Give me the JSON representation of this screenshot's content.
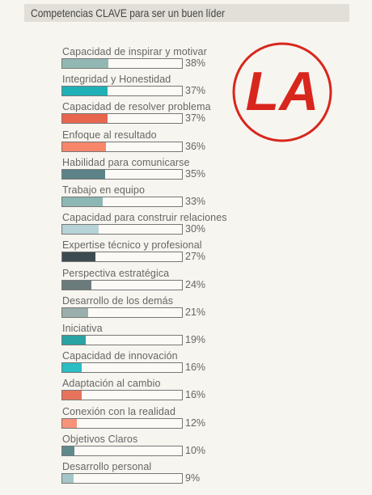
{
  "chart_data": {
    "type": "bar",
    "title": "Competencias CLAVE para ser un buen líder",
    "logo_text": "LA",
    "xlim": [
      0,
      100
    ],
    "categories": [
      "Capacidad de inspirar y motivar",
      "Integridad y Honestidad",
      "Capacidad de resolver problema",
      "Enfoque al resultado",
      "Habilidad para comunicarse",
      "Trabajo en equipo",
      "Capacidad para construir relaciones",
      "Expertise técnico y profesional",
      "Perspectiva estratégica",
      "Desarrollo de los demás",
      "Iniciativa",
      "Capacidad de innovación",
      "Adaptación al cambio",
      "Conexión con la realidad",
      "Objetivos Claros",
      "Desarrollo personal"
    ],
    "values": [
      38,
      37,
      37,
      36,
      35,
      33,
      30,
      27,
      24,
      21,
      19,
      16,
      16,
      12,
      10,
      9
    ],
    "value_labels": [
      "38%",
      "37%",
      "37%",
      "36%",
      "35%",
      "33%",
      "30%",
      "27%",
      "24%",
      "21%",
      "19%",
      "16%",
      "16%",
      "12%",
      "10%",
      "9%"
    ],
    "colors": [
      "#93b8b3",
      "#1fb1b7",
      "#e8654e",
      "#f7866a",
      "#5d8388",
      "#8cb7b3",
      "#b7d3d7",
      "#3c4b50",
      "#6b7b7b",
      "#9aafac",
      "#2aa3a5",
      "#2bbcc4",
      "#e8735c",
      "#f79378",
      "#5f8a8c",
      "#a4c6c8"
    ]
  }
}
